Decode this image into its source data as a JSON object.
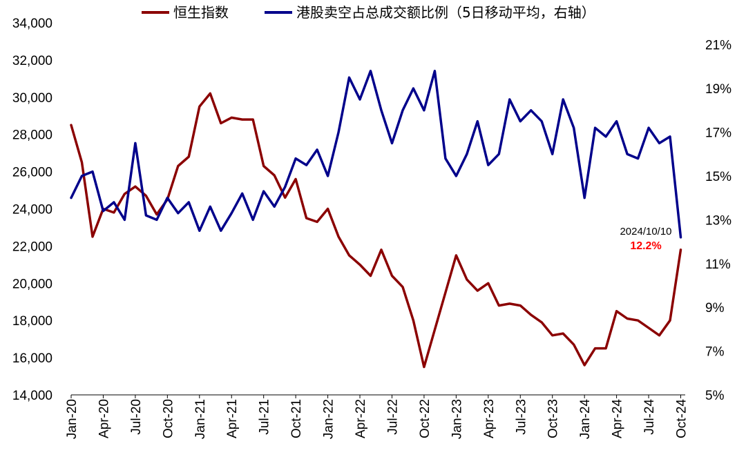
{
  "chart_data": {
    "type": "line",
    "title": "",
    "legend": {
      "placement": "top",
      "entries": [
        {
          "label": "恒生指数",
          "color": "#8B0000"
        },
        {
          "label": "港股卖空占总成交额比例（5日移动平均，右轴）",
          "color": "#00008B"
        }
      ]
    },
    "x_tick_labels": [
      "Jan-20",
      "Apr-20",
      "Jul-20",
      "Oct-20",
      "Jan-21",
      "Apr-21",
      "Jul-21",
      "Oct-21",
      "Jan-22",
      "Apr-22",
      "Jul-22",
      "Oct-22",
      "Jan-23",
      "Apr-23",
      "Jul-23",
      "Oct-23",
      "Jan-24",
      "Apr-24",
      "Jul-24",
      "Oct-24"
    ],
    "x_range": [
      "2020-01-01",
      "2024-10-10"
    ],
    "y_left": {
      "min": 14000,
      "max": 34000,
      "ticks": [
        "14,000",
        "16,000",
        "18,000",
        "20,000",
        "22,000",
        "24,000",
        "26,000",
        "28,000",
        "30,000",
        "32,000",
        "34,000"
      ]
    },
    "y_right": {
      "min": 5,
      "max": 22,
      "unit": "%",
      "ticks": [
        "5%",
        "7%",
        "9%",
        "11%",
        "13%",
        "15%",
        "17%",
        "19%",
        "21%"
      ]
    },
    "grid": false,
    "series": [
      {
        "name": "恒生指数",
        "axis": "left",
        "color": "#8B0000",
        "x": [
          "2020-01",
          "2020-02",
          "2020-03",
          "2020-04",
          "2020-05",
          "2020-06",
          "2020-07",
          "2020-08",
          "2020-09",
          "2020-10",
          "2020-11",
          "2020-12",
          "2021-01",
          "2021-02",
          "2021-03",
          "2021-04",
          "2021-05",
          "2021-06",
          "2021-07",
          "2021-08",
          "2021-09",
          "2021-10",
          "2021-11",
          "2021-12",
          "2022-01",
          "2022-02",
          "2022-03",
          "2022-04",
          "2022-05",
          "2022-06",
          "2022-07",
          "2022-08",
          "2022-09",
          "2022-10",
          "2022-11",
          "2022-12",
          "2023-01",
          "2023-02",
          "2023-03",
          "2023-04",
          "2023-05",
          "2023-06",
          "2023-07",
          "2023-08",
          "2023-09",
          "2023-10",
          "2023-11",
          "2023-12",
          "2024-01",
          "2024-02",
          "2024-03",
          "2024-04",
          "2024-05",
          "2024-06",
          "2024-07",
          "2024-08",
          "2024-09",
          "2024-10"
        ],
        "values": [
          28500,
          26500,
          22500,
          24000,
          23800,
          24800,
          25200,
          24700,
          23700,
          24500,
          26300,
          26800,
          29500,
          30200,
          28600,
          28900,
          28800,
          28800,
          26300,
          25800,
          24600,
          25600,
          23500,
          23300,
          24000,
          22500,
          21500,
          21000,
          20400,
          21800,
          20400,
          19800,
          18000,
          15500,
          17500,
          19500,
          21500,
          20200,
          19600,
          20000,
          18800,
          18900,
          18800,
          18300,
          17900,
          17200,
          17300,
          16700,
          15600,
          16500,
          16500,
          18500,
          18100,
          18000,
          17600,
          17200,
          18000,
          21800
        ]
      },
      {
        "name": "港股卖空占总成交额比例（5日移动平均，右轴）",
        "axis": "right",
        "color": "#00008B",
        "x": [
          "2020-01",
          "2020-02",
          "2020-03",
          "2020-04",
          "2020-05",
          "2020-06",
          "2020-07",
          "2020-08",
          "2020-09",
          "2020-10",
          "2020-11",
          "2020-12",
          "2021-01",
          "2021-02",
          "2021-03",
          "2021-04",
          "2021-05",
          "2021-06",
          "2021-07",
          "2021-08",
          "2021-09",
          "2021-10",
          "2021-11",
          "2021-12",
          "2022-01",
          "2022-02",
          "2022-03",
          "2022-04",
          "2022-05",
          "2022-06",
          "2022-07",
          "2022-08",
          "2022-09",
          "2022-10",
          "2022-11",
          "2022-12",
          "2023-01",
          "2023-02",
          "2023-03",
          "2023-04",
          "2023-05",
          "2023-06",
          "2023-07",
          "2023-08",
          "2023-09",
          "2023-10",
          "2023-11",
          "2023-12",
          "2024-01",
          "2024-02",
          "2024-03",
          "2024-04",
          "2024-05",
          "2024-06",
          "2024-07",
          "2024-08",
          "2024-09",
          "2024-10"
        ],
        "values": [
          14.0,
          15.0,
          15.2,
          13.4,
          13.8,
          13.0,
          16.5,
          13.2,
          13.0,
          14.0,
          13.3,
          13.8,
          12.5,
          13.6,
          12.5,
          13.3,
          14.2,
          13.0,
          14.3,
          13.6,
          14.5,
          15.8,
          15.5,
          16.2,
          15.0,
          17.0,
          19.5,
          18.5,
          19.8,
          18.0,
          16.5,
          18.0,
          19.0,
          18.0,
          19.8,
          15.8,
          15.0,
          16.0,
          17.5,
          15.5,
          16.0,
          18.5,
          17.5,
          18.0,
          17.5,
          16.0,
          18.5,
          17.2,
          14.0,
          17.2,
          16.8,
          17.5,
          16.0,
          15.8,
          17.2,
          16.5,
          16.8,
          12.2
        ]
      }
    ],
    "annotation": {
      "date": "2024/10/10",
      "value": "12.2%"
    }
  }
}
